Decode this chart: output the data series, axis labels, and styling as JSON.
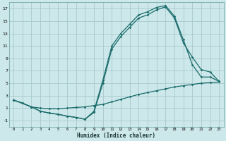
{
  "background_color": "#cde8ea",
  "grid_color": "#a8c8cc",
  "line_color": "#1a6b6b",
  "xlabel": "Humidex (Indice chaleur)",
  "ylim": [
    -2,
    18
  ],
  "xlim": [
    -0.5,
    23.5
  ],
  "yticks": [
    -1,
    1,
    3,
    5,
    7,
    9,
    11,
    13,
    15,
    17
  ],
  "xticks": [
    0,
    1,
    2,
    3,
    4,
    5,
    6,
    7,
    8,
    9,
    10,
    11,
    12,
    13,
    14,
    15,
    16,
    17,
    18,
    19,
    20,
    21,
    22,
    23
  ],
  "curve1_x": [
    0,
    1,
    2,
    3,
    4,
    5,
    6,
    7,
    8,
    9,
    10,
    11,
    12,
    13,
    14,
    15,
    16,
    17,
    18,
    19,
    20,
    21,
    22,
    23
  ],
  "curve1_y": [
    2.3,
    1.8,
    1.2,
    1.0,
    0.9,
    0.9,
    1.0,
    1.1,
    1.2,
    1.4,
    1.6,
    2.0,
    2.4,
    2.8,
    3.2,
    3.5,
    3.8,
    4.1,
    4.4,
    4.6,
    4.8,
    5.0,
    5.1,
    5.2
  ],
  "curve2_x": [
    0,
    1,
    2,
    3,
    4,
    5,
    6,
    7,
    8,
    9,
    10,
    11,
    12,
    13,
    14,
    15,
    16,
    17,
    18,
    19,
    20,
    21,
    22,
    23
  ],
  "curve2_y": [
    2.3,
    1.8,
    1.2,
    0.5,
    0.2,
    0.0,
    -0.3,
    -0.5,
    -0.8,
    0.5,
    5.5,
    11.0,
    13.0,
    14.5,
    16.0,
    16.5,
    17.2,
    17.5,
    15.8,
    12.0,
    8.0,
    6.0,
    6.0,
    5.3
  ],
  "curve3_x": [
    0,
    2,
    3,
    4,
    5,
    6,
    7,
    8,
    9,
    10,
    11,
    12,
    13,
    14,
    15,
    16,
    17,
    18,
    19,
    20,
    21,
    22,
    23
  ],
  "curve3_y": [
    2.3,
    1.2,
    0.5,
    0.2,
    0.0,
    -0.3,
    -0.5,
    -0.8,
    0.3,
    5.0,
    10.5,
    12.5,
    14.0,
    15.5,
    16.0,
    16.8,
    17.3,
    15.5,
    11.5,
    9.2,
    7.2,
    6.8,
    5.3
  ],
  "marker": "D",
  "markersize": 1.8,
  "linewidth": 0.9
}
